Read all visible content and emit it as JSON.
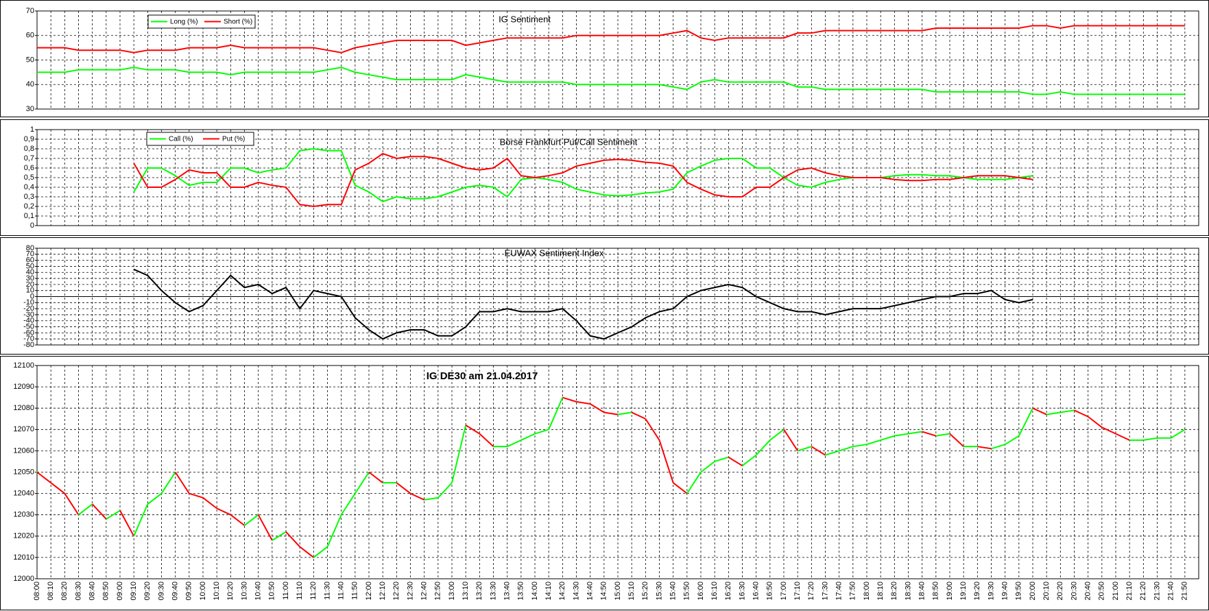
{
  "chart_data": [
    {
      "type": "line",
      "title": "IG Sentiment",
      "ylim": [
        30,
        70
      ],
      "yticks": [
        30,
        40,
        50,
        60,
        70
      ],
      "grid": true,
      "legend": "top-left",
      "series": [
        {
          "name": "Long (%)",
          "color": "#00ff00",
          "values": [
            45,
            45,
            45,
            46,
            46,
            46,
            46,
            47,
            46,
            46,
            46,
            45,
            45,
            45,
            44,
            45,
            45,
            45,
            45,
            45,
            45,
            46,
            47,
            45,
            44,
            43,
            42,
            42,
            42,
            42,
            42,
            44,
            43,
            42,
            41,
            41,
            41,
            41,
            41,
            40,
            40,
            40,
            40,
            40,
            40,
            40,
            39,
            38,
            41,
            42,
            41,
            41,
            41,
            41,
            41,
            39,
            39,
            38,
            38,
            38,
            38,
            38,
            38,
            38,
            38,
            37,
            37,
            37,
            37,
            37,
            37,
            37,
            36,
            36,
            37,
            36,
            36,
            36,
            36,
            36,
            36,
            36,
            36,
            36
          ]
        },
        {
          "name": "Short (%)",
          "color": "#ff0000",
          "values": [
            55,
            55,
            55,
            54,
            54,
            54,
            54,
            53,
            54,
            54,
            54,
            55,
            55,
            55,
            56,
            55,
            55,
            55,
            55,
            55,
            55,
            54,
            53,
            55,
            56,
            57,
            58,
            58,
            58,
            58,
            58,
            56,
            57,
            58,
            59,
            59,
            59,
            59,
            59,
            60,
            60,
            60,
            60,
            60,
            60,
            60,
            61,
            62,
            59,
            58,
            59,
            59,
            59,
            59,
            59,
            61,
            61,
            62,
            62,
            62,
            62,
            62,
            62,
            62,
            62,
            63,
            63,
            63,
            63,
            63,
            63,
            63,
            64,
            64,
            63,
            64,
            64,
            64,
            64,
            64,
            64,
            64,
            64,
            64
          ]
        }
      ]
    },
    {
      "type": "line",
      "title": "Börse Frankfurt Put/Call Sentiment",
      "ylim": [
        0,
        1
      ],
      "yticks": [
        0,
        {
          "value": 0.1,
          "label": "0,1"
        },
        {
          "value": 0.2,
          "label": "0,2"
        },
        {
          "value": 0.3,
          "label": "0,3"
        },
        {
          "value": 0.4,
          "label": "0,4"
        },
        {
          "value": 0.5,
          "label": "0,5"
        },
        {
          "value": 0.6,
          "label": "0,6"
        },
        {
          "value": 0.7,
          "label": "0,7"
        },
        {
          "value": 0.8,
          "label": "0,8"
        },
        {
          "value": 0.9,
          "label": "0,9"
        },
        1
      ],
      "grid": true,
      "legend": "top-left",
      "series": [
        {
          "name": "Call (%)",
          "color": "#00ff00",
          "values": [
            null,
            null,
            null,
            null,
            null,
            null,
            null,
            0.35,
            0.6,
            0.6,
            0.52,
            0.42,
            0.45,
            0.45,
            0.6,
            0.6,
            0.55,
            0.58,
            0.6,
            0.78,
            0.8,
            0.78,
            0.78,
            0.42,
            0.35,
            0.25,
            0.3,
            0.28,
            0.28,
            0.3,
            0.35,
            0.4,
            0.42,
            0.4,
            0.3,
            0.48,
            0.5,
            0.48,
            0.45,
            0.38,
            0.35,
            0.32,
            0.31,
            0.32,
            0.34,
            0.35,
            0.38,
            0.55,
            0.62,
            0.68,
            0.7,
            0.7,
            0.6,
            0.6,
            0.5,
            0.42,
            0.4,
            0.45,
            0.48,
            0.5,
            0.5,
            0.5,
            0.52,
            0.53,
            0.53,
            0.52,
            0.52,
            0.5,
            0.48,
            0.48,
            0.48,
            0.5,
            0.52,
            null,
            null,
            null,
            null,
            null,
            null,
            null,
            null,
            null,
            null,
            null
          ]
        },
        {
          "name": "Put (%)",
          "color": "#ff0000",
          "values": [
            null,
            null,
            null,
            null,
            null,
            null,
            null,
            0.65,
            0.4,
            0.4,
            0.48,
            0.58,
            0.55,
            0.55,
            0.4,
            0.4,
            0.45,
            0.42,
            0.4,
            0.22,
            0.2,
            0.22,
            0.22,
            0.58,
            0.65,
            0.75,
            0.7,
            0.72,
            0.72,
            0.7,
            0.65,
            0.6,
            0.58,
            0.6,
            0.7,
            0.52,
            0.5,
            0.52,
            0.55,
            0.62,
            0.65,
            0.68,
            0.69,
            0.68,
            0.66,
            0.65,
            0.62,
            0.45,
            0.38,
            0.32,
            0.3,
            0.3,
            0.4,
            0.4,
            0.5,
            0.58,
            0.6,
            0.55,
            0.52,
            0.5,
            0.5,
            0.5,
            0.48,
            0.47,
            0.47,
            0.48,
            0.48,
            0.5,
            0.52,
            0.52,
            0.52,
            0.5,
            0.48,
            null,
            null,
            null,
            null,
            null,
            null,
            null,
            null,
            null,
            null,
            null
          ]
        }
      ]
    },
    {
      "type": "line",
      "title": "EUWAX  Sentiment Index",
      "ylim": [
        -80,
        80
      ],
      "yticks": [
        -80,
        -70,
        -60,
        -50,
        -40,
        -30,
        -20,
        -10,
        0,
        10,
        20,
        30,
        40,
        50,
        60,
        70,
        80
      ],
      "grid": true,
      "zero_line": true,
      "series": [
        {
          "color": "#000000",
          "values": [
            null,
            null,
            null,
            null,
            null,
            null,
            null,
            45,
            35,
            10,
            -10,
            -25,
            -15,
            10,
            35,
            15,
            20,
            5,
            15,
            -20,
            10,
            5,
            0,
            -35,
            -55,
            -70,
            -60,
            -55,
            -55,
            -65,
            -65,
            -50,
            -25,
            -25,
            -20,
            -25,
            -25,
            -25,
            -20,
            -40,
            -65,
            -70,
            -60,
            -50,
            -35,
            -25,
            -20,
            0,
            10,
            15,
            20,
            15,
            0,
            -10,
            -20,
            -25,
            -25,
            -30,
            -25,
            -20,
            -20,
            -20,
            -15,
            -10,
            -5,
            0,
            0,
            5,
            5,
            10,
            -5,
            -10,
            -5,
            null,
            null,
            null,
            null,
            null,
            null,
            null,
            null,
            null,
            null,
            null
          ]
        }
      ]
    },
    {
      "type": "line",
      "title": "IG DE30 am 21.04.2017",
      "ylim": [
        12000,
        12100
      ],
      "yticks": [
        12000,
        12010,
        12020,
        12030,
        12040,
        12050,
        12060,
        12070,
        12080,
        12090,
        12100
      ],
      "grid": true,
      "up_color": "#00ff00",
      "down_color": "#ff0000",
      "x": [
        "08:00",
        "08:10",
        "08:20",
        "08:30",
        "08:40",
        "08:50",
        "09:00",
        "09:10",
        "09:20",
        "09:30",
        "09:40",
        "09:50",
        "10:00",
        "10:10",
        "10:20",
        "10:30",
        "10:40",
        "10:50",
        "11:00",
        "11:10",
        "11:20",
        "11:30",
        "11:40",
        "11:50",
        "12:00",
        "12:10",
        "12:20",
        "12:30",
        "12:40",
        "12:50",
        "13:00",
        "13:10",
        "13:20",
        "13:30",
        "13:40",
        "13:50",
        "14:00",
        "14:10",
        "14:20",
        "14:30",
        "14:40",
        "14:50",
        "15:00",
        "15:10",
        "15:20",
        "15:30",
        "15:40",
        "15:50",
        "16:00",
        "16:10",
        "16:20",
        "16:30",
        "16:40",
        "16:50",
        "17:00",
        "17:10",
        "17:20",
        "17:30",
        "17:40",
        "17:50",
        "18:00",
        "18:10",
        "18:20",
        "18:30",
        "18:40",
        "18:50",
        "19:00",
        "19:10",
        "19:20",
        "19:30",
        "19:40",
        "19:50",
        "20:00",
        "20:10",
        "20:20",
        "20:30",
        "20:40",
        "20:50",
        "21:00",
        "21:10",
        "21:20",
        "21:30",
        "21:40",
        "21:50"
      ],
      "values": [
        12050,
        12045,
        12040,
        12030,
        12035,
        12028,
        12032,
        12020,
        12035,
        12040,
        12050,
        12040,
        12038,
        12033,
        12030,
        12025,
        12030,
        12018,
        12022,
        12015,
        12010,
        12015,
        12030,
        12040,
        12050,
        12045,
        12045,
        12040,
        12037,
        12038,
        12045,
        12072,
        12068,
        12062,
        12062,
        12065,
        12068,
        12070,
        12085,
        12083,
        12082,
        12078,
        12077,
        12078,
        12075,
        12065,
        12045,
        12040,
        12050,
        12055,
        12057,
        12053,
        12058,
        12065,
        12070,
        12060,
        12062,
        12058,
        12060,
        12062,
        12063,
        12065,
        12067,
        12068,
        12069,
        12067,
        12068,
        12062,
        12062,
        12061,
        12063,
        12067,
        12080,
        12077,
        12078,
        12079,
        12076,
        12071,
        12068,
        12065,
        12065,
        12066,
        12066,
        12070
      ]
    }
  ]
}
